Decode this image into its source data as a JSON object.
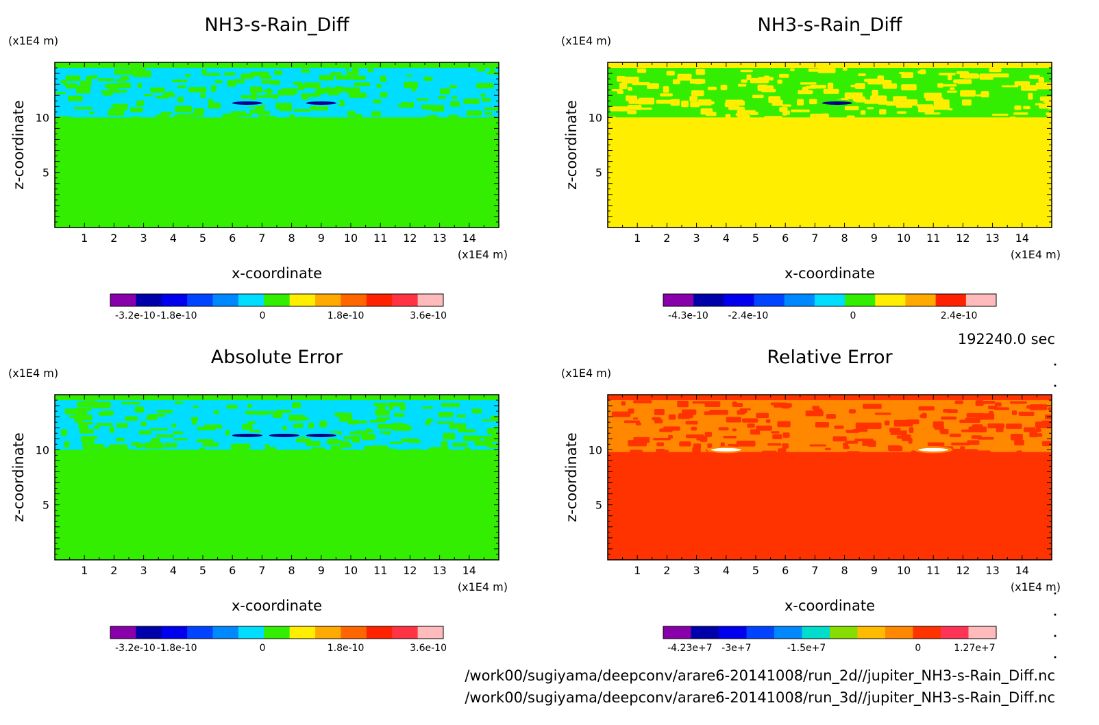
{
  "time_label": "192240.0 sec",
  "file_paths": [
    "/work00/sugiyama/deepconv/arare6-20141008/run_2d//jupiter_NH3-s-Rain_Diff.nc",
    "/work00/sugiyama/deepconv/arare6-20141008/run_3d//jupiter_NH3-s-Rain_Diff.nc"
  ],
  "chart_data": [
    {
      "type": "heatmap",
      "title": "NH3-s-Rain_Diff",
      "xlabel": "x-coordinate",
      "ylabel": "z-coordinate",
      "x_unit": "(x1E4 m)",
      "y_unit": "(x1E4 m)",
      "xlim": [
        0,
        15
      ],
      "ylim": [
        0,
        15
      ],
      "x_ticks": [
        1,
        2,
        3,
        4,
        5,
        6,
        7,
        8,
        9,
        10,
        11,
        12,
        13,
        14
      ],
      "y_ticks": [
        5,
        10
      ],
      "background_color": "#33ee00",
      "band": {
        "z_range": [
          10,
          14.5
        ],
        "color": "#00ddff",
        "dominant": "#33ee00"
      },
      "features": [
        {
          "x": 6.5,
          "z": 11.3,
          "color": "#000088"
        },
        {
          "x": 9.0,
          "z": 11.3,
          "color": "#000088"
        }
      ],
      "colorbar": {
        "colors": [
          "#8800aa",
          "#0000aa",
          "#0000ee",
          "#0044ff",
          "#0088ff",
          "#00ddff",
          "#33ee00",
          "#ffee00",
          "#ffaa00",
          "#ff6600",
          "#ff2200",
          "#ff3344",
          "#ffbbbb"
        ],
        "labels": [
          "-3.2e-10",
          "-1.8e-10",
          "0",
          "1.8e-10",
          "3.6e-10"
        ],
        "label_positions": [
          0.075,
          0.2,
          0.457,
          0.707,
          0.955
        ]
      }
    },
    {
      "type": "heatmap",
      "title": "NH3-s-Rain_Diff",
      "xlabel": "x-coordinate",
      "ylabel": "z-coordinate",
      "x_unit": "(x1E4 m)",
      "y_unit": "(x1E4 m)",
      "xlim": [
        0,
        15
      ],
      "ylim": [
        0,
        15
      ],
      "x_ticks": [
        1,
        2,
        3,
        4,
        5,
        6,
        7,
        8,
        9,
        10,
        11,
        12,
        13,
        14
      ],
      "y_ticks": [
        5,
        10
      ],
      "background_color": "#ffee00",
      "band": {
        "z_range": [
          10,
          14.5
        ],
        "color": "#33ee00",
        "dominant": "#ffee00"
      },
      "features": [
        {
          "x": 7.75,
          "z": 11.3,
          "color": "#000088"
        }
      ],
      "colorbar": {
        "colors": [
          "#8800aa",
          "#0000aa",
          "#0000ee",
          "#0044ff",
          "#0088ff",
          "#00ddff",
          "#33ee00",
          "#ffee00",
          "#ffaa00",
          "#ff2200",
          "#ffbbbb"
        ],
        "labels": [
          "-4.3e-10",
          "-2.4e-10",
          "0",
          "2.4e-10"
        ],
        "label_positions": [
          0.075,
          0.255,
          0.57,
          0.888
        ]
      }
    },
    {
      "type": "heatmap",
      "title": "Absolute Error",
      "xlabel": "x-coordinate",
      "ylabel": "z-coordinate",
      "x_unit": "(x1E4 m)",
      "y_unit": "(x1E4 m)",
      "xlim": [
        0,
        15
      ],
      "ylim": [
        0,
        15
      ],
      "x_ticks": [
        1,
        2,
        3,
        4,
        5,
        6,
        7,
        8,
        9,
        10,
        11,
        12,
        13,
        14
      ],
      "y_ticks": [
        5,
        10
      ],
      "background_color": "#33ee00",
      "band": {
        "z_range": [
          10,
          14.5
        ],
        "color": "#00ddff",
        "dominant": "#33ee00"
      },
      "features": [
        {
          "x": 6.5,
          "z": 11.3,
          "color": "#000088"
        },
        {
          "x": 7.75,
          "z": 11.3,
          "color": "#000088"
        },
        {
          "x": 9.0,
          "z": 11.3,
          "color": "#000088"
        }
      ],
      "colorbar": {
        "colors": [
          "#8800aa",
          "#0000aa",
          "#0000ee",
          "#0044ff",
          "#0088ff",
          "#00ddff",
          "#33ee00",
          "#ffee00",
          "#ffaa00",
          "#ff6600",
          "#ff2200",
          "#ff3344",
          "#ffbbbb"
        ],
        "labels": [
          "-3.2e-10",
          "-1.8e-10",
          "0",
          "1.8e-10",
          "3.6e-10"
        ],
        "label_positions": [
          0.075,
          0.2,
          0.457,
          0.707,
          0.955
        ]
      }
    },
    {
      "type": "heatmap",
      "title": "Relative Error",
      "xlabel": "x-coordinate",
      "ylabel": "z-coordinate",
      "x_unit": "(x1E4 m)",
      "y_unit": "(x1E4 m)",
      "xlim": [
        0,
        15
      ],
      "ylim": [
        0,
        15
      ],
      "x_ticks": [
        1,
        2,
        3,
        4,
        5,
        6,
        7,
        8,
        9,
        10,
        11,
        12,
        13,
        14
      ],
      "y_ticks": [
        5,
        10
      ],
      "background_color": "#ff3300",
      "band": {
        "z_range": [
          9.8,
          14.5
        ],
        "color": "#ff8800",
        "dominant": "#ff3300"
      },
      "features": [
        {
          "x": 4.0,
          "z": 10.0,
          "color": "#ffffff"
        },
        {
          "x": 11.0,
          "z": 10.0,
          "color": "#ffffff"
        }
      ],
      "colorbar": {
        "colors": [
          "#8800aa",
          "#0000aa",
          "#0000ee",
          "#0044ff",
          "#0088ff",
          "#00ddcc",
          "#88dd00",
          "#ffbb00",
          "#ff8800",
          "#ff3300",
          "#ff3355",
          "#ffbbbb"
        ],
        "labels": [
          "-4.23e+7",
          "-3e+7",
          "-1.5e+7",
          "0",
          "1.27e+7"
        ],
        "label_positions": [
          0.08,
          0.22,
          0.43,
          0.765,
          0.935
        ]
      }
    }
  ]
}
